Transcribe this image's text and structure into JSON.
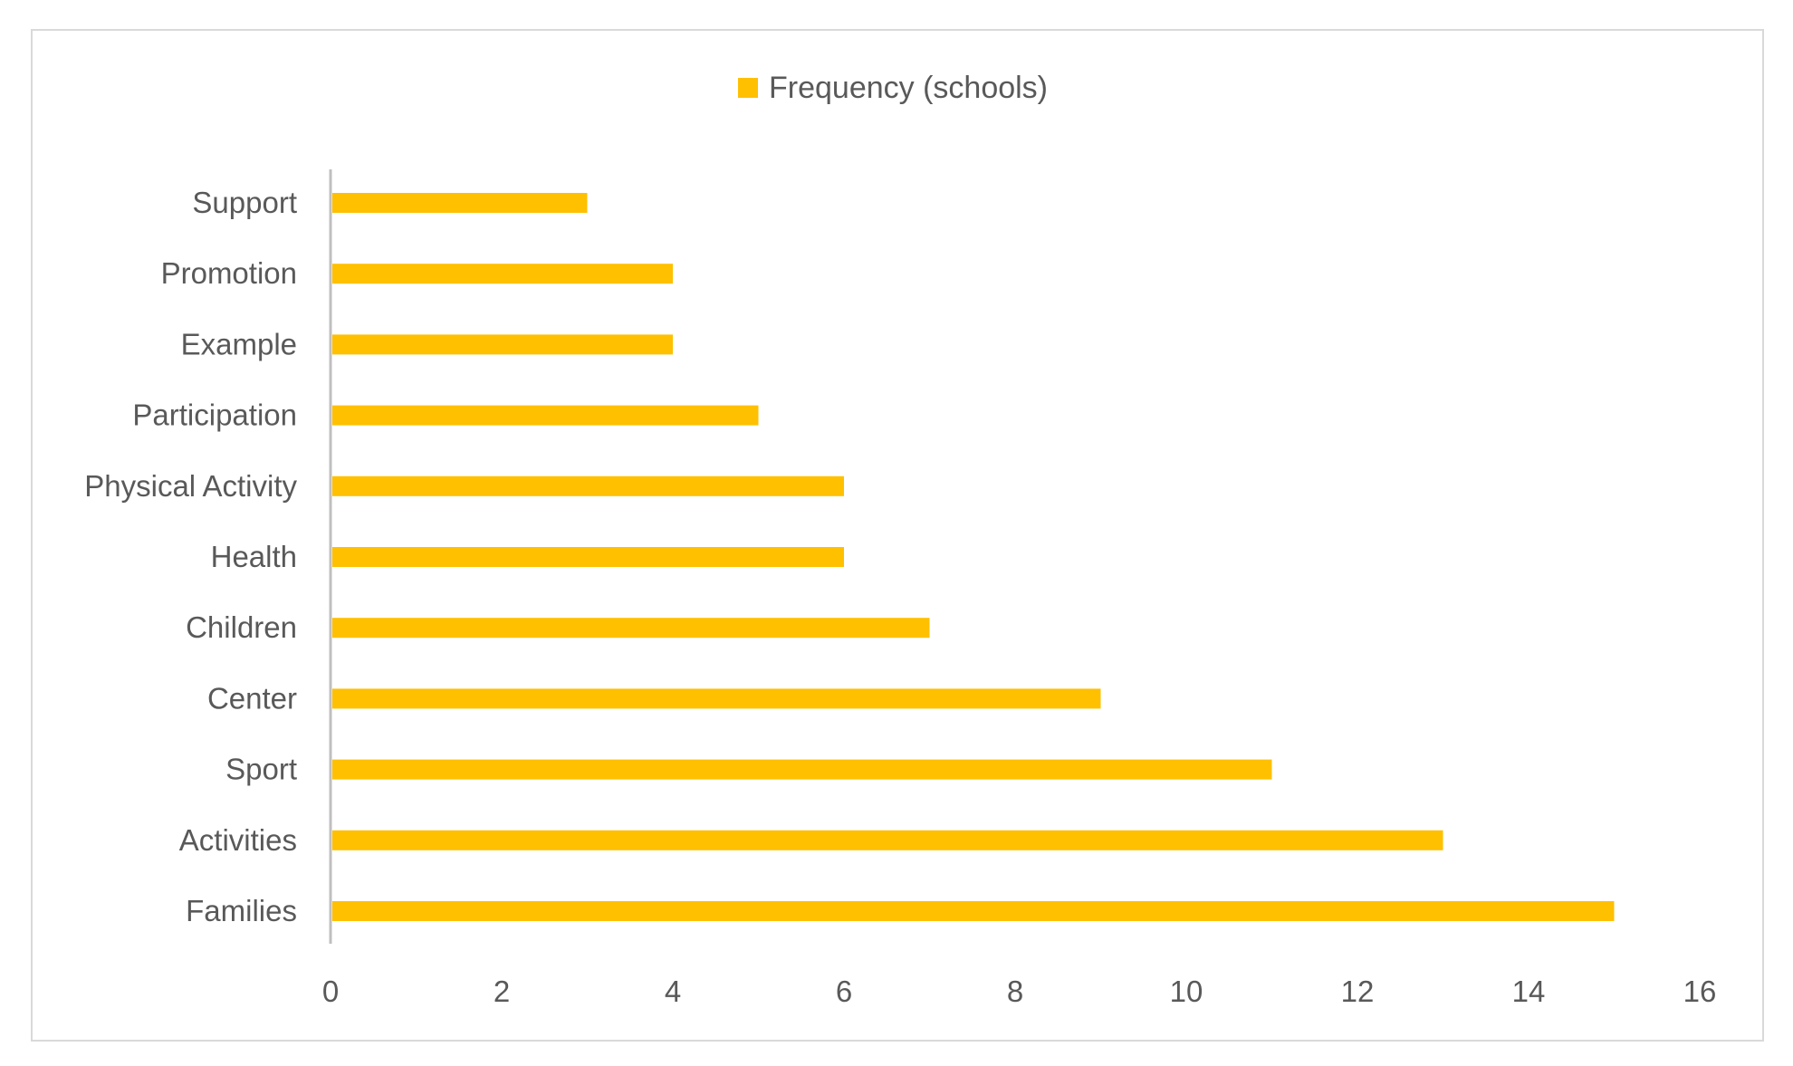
{
  "chart_data": {
    "type": "bar",
    "orientation": "horizontal",
    "categories": [
      "Support",
      "Promotion",
      "Example",
      "Participation",
      "Physical Activity",
      "Health",
      "Children",
      "Center",
      "Sport",
      "Activities",
      "Families"
    ],
    "series": [
      {
        "name": "Frequency (schools)",
        "values": [
          3,
          4,
          4,
          5,
          6,
          6,
          7,
          9,
          11,
          13,
          15
        ],
        "color": "#FFC000"
      }
    ],
    "xlim": [
      0,
      16
    ],
    "xticks": [
      "0",
      "2",
      "4",
      "6",
      "8",
      "10",
      "12",
      "14",
      "16"
    ],
    "grid": false,
    "legend_position": "top"
  }
}
